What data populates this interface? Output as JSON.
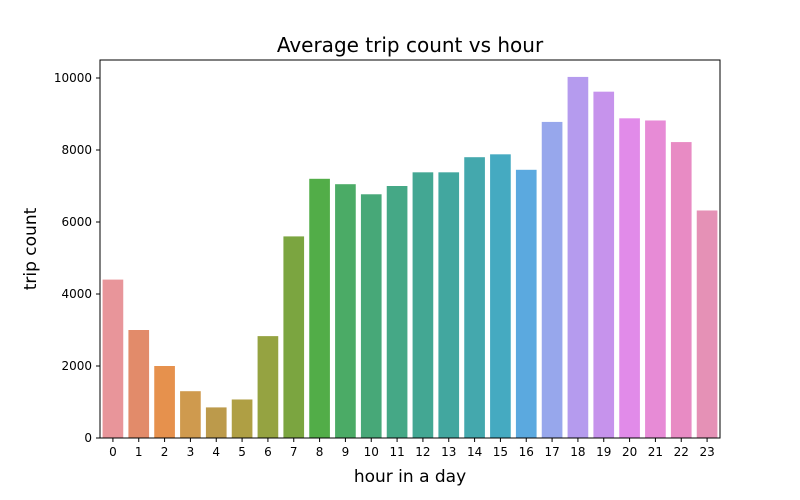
{
  "chart_data": {
    "type": "bar",
    "title": "Average trip count vs hour",
    "xlabel": "hour in a day",
    "ylabel": "trip count",
    "ylim": [
      0,
      10500
    ],
    "yticks": [
      0,
      2000,
      4000,
      6000,
      8000,
      10000
    ],
    "grid": false,
    "categories": [
      "0",
      "1",
      "2",
      "3",
      "4",
      "5",
      "6",
      "7",
      "8",
      "9",
      "10",
      "11",
      "12",
      "13",
      "14",
      "15",
      "16",
      "17",
      "18",
      "19",
      "20",
      "21",
      "22",
      "23"
    ],
    "values": [
      4400,
      3000,
      2000,
      1300,
      850,
      1070,
      2830,
      5600,
      7200,
      7050,
      6770,
      7000,
      7380,
      7380,
      7800,
      7880,
      7450,
      8780,
      10030,
      9620,
      8880,
      8820,
      8220,
      6320
    ],
    "colors": [
      "#e8959a",
      "#e28b6a",
      "#e6914d",
      "#cf9a4e",
      "#bc9a4b",
      "#af9f44",
      "#95a341",
      "#7ba540",
      "#52ad48",
      "#4bab66",
      "#47a878",
      "#45a886",
      "#43a793",
      "#42a79f",
      "#44a8ad",
      "#45aac1",
      "#5ba9df",
      "#97a7ec",
      "#b59bee",
      "#c693ec",
      "#e18be9",
      "#e78bd6",
      "#e88bc4",
      "#e591b6"
    ]
  }
}
